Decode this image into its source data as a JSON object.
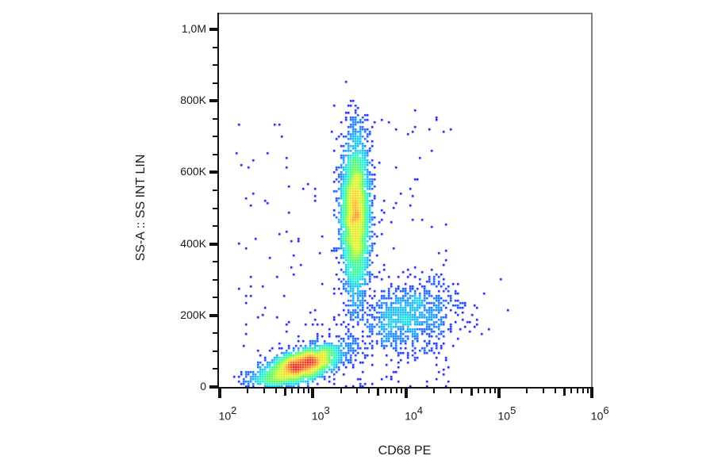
{
  "chart_data": {
    "type": "scatter",
    "subtype": "flow-cytometry-density-dot-plot",
    "title": "",
    "xlabel": "CD68 PE",
    "ylabel": "SS-A :: SS INT LIN",
    "x_scale": "log",
    "y_scale": "linear",
    "xlim": [
      100,
      1000000
    ],
    "ylim": [
      0,
      1050000
    ],
    "grid": false,
    "legend": null,
    "x_ticks": [
      {
        "value": 100,
        "base": "10",
        "exp": "2"
      },
      {
        "value": 1000,
        "base": "10",
        "exp": "3"
      },
      {
        "value": 10000,
        "base": "10",
        "exp": "4"
      },
      {
        "value": 100000,
        "base": "10",
        "exp": "5"
      },
      {
        "value": 1000000,
        "base": "10",
        "exp": "6"
      }
    ],
    "y_ticks": [
      {
        "value": 0,
        "label": "0"
      },
      {
        "value": 200000,
        "label": "200K"
      },
      {
        "value": 400000,
        "label": "400K"
      },
      {
        "value": 600000,
        "label": "600K"
      },
      {
        "value": 800000,
        "label": "800K"
      },
      {
        "value": 1000000,
        "label": "1,0M"
      }
    ],
    "y_minor_step": 50000,
    "colormap": [
      "#00008b",
      "#0000ff",
      "#00a0ff",
      "#00ffcc",
      "#40ff40",
      "#c8ff00",
      "#ffd000",
      "#ff6000",
      "#e00000"
    ],
    "populations": [
      {
        "name": "low-SS CD68-dim population (lymphocytes)",
        "center_x": 750,
        "center_y": 60000,
        "spread_log_x": 0.22,
        "spread_y": 22000,
        "tilt": 0.55,
        "count": 2600,
        "peak_color": "#e00000"
      },
      {
        "name": "high-SS CD68+ population (granulocytes)",
        "center_x": 2900,
        "center_y": 480000,
        "spread_log_x": 0.075,
        "spread_y": 110000,
        "tilt": 0.0,
        "count": 3200,
        "peak_color": "#c8ff00"
      },
      {
        "name": "mid-SS CD68 bright population (monocytes)",
        "center_x": 11000,
        "center_y": 200000,
        "spread_log_x": 0.28,
        "spread_y": 50000,
        "tilt": 0.15,
        "count": 900,
        "peak_color": "#00a0ff"
      },
      {
        "name": "scattered events",
        "x_range": [
          150,
          30000
        ],
        "y_range": [
          0,
          800000
        ],
        "count": 260,
        "peak_color": "#0000ff"
      }
    ]
  },
  "axes": {
    "x_title": "CD68 PE",
    "y_title": "SS-A :: SS INT LIN"
  }
}
